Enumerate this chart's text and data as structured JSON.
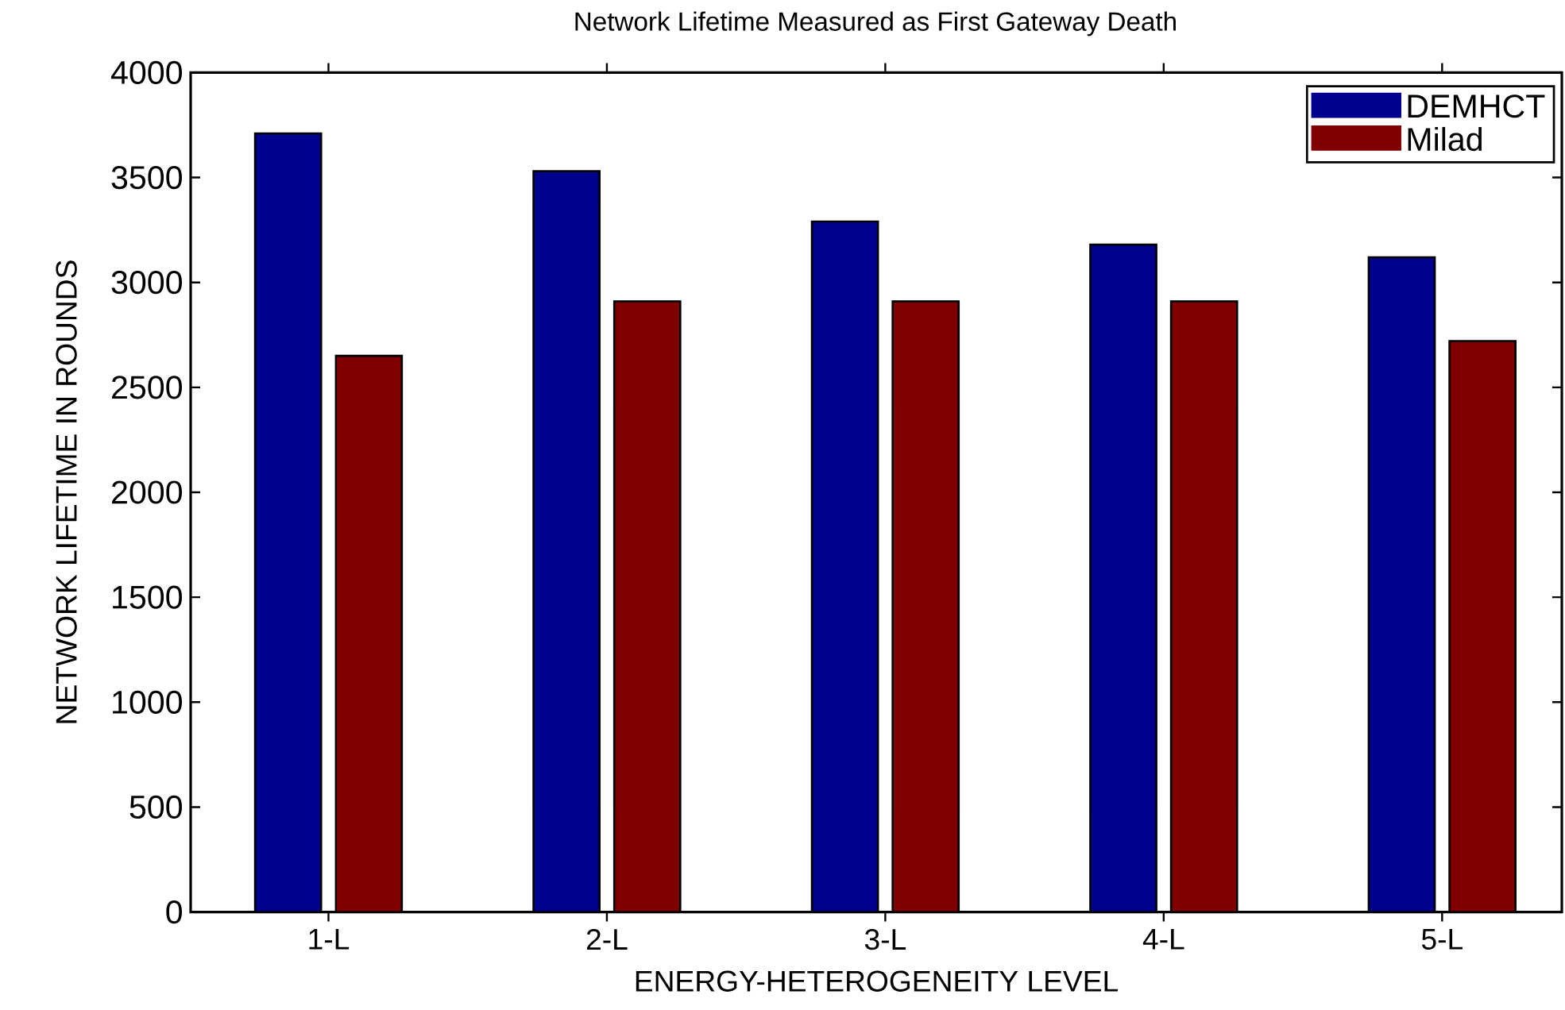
{
  "chart_data": {
    "type": "bar",
    "title": "Network Lifetime Measured as First Gateway Death",
    "xlabel": "ENERGY-HETEROGENEITY LEVEL",
    "ylabel": "NETWORK LIFETIME IN ROUNDS",
    "categories": [
      "1-L",
      "2-L",
      "3-L",
      "4-L",
      "5-L"
    ],
    "series": [
      {
        "name": "DEMHCT",
        "color": "#00008f",
        "values": [
          3710,
          3530,
          3290,
          3180,
          3120
        ]
      },
      {
        "name": "Milad",
        "color": "#800000",
        "values": [
          2650,
          2910,
          2910,
          2910,
          2720
        ]
      }
    ],
    "ylim": [
      0,
      4000
    ],
    "yticks": [
      0,
      500,
      1000,
      1500,
      2000,
      2500,
      3000,
      3500,
      4000
    ],
    "grid": false,
    "legend": "top right"
  }
}
